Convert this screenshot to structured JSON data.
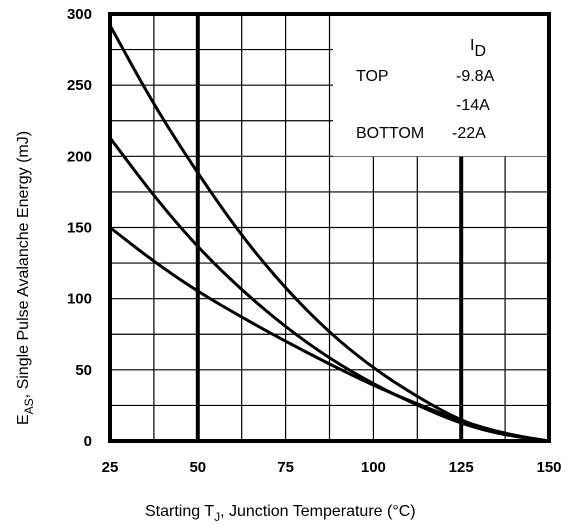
{
  "chart_data": {
    "type": "line",
    "title": "",
    "xlabel": {
      "prefix": "Starting T",
      "subscript": "J",
      "suffix": ", Junction Temperature (°C)"
    },
    "ylabel": {
      "prefix": "E",
      "subscript": "AS",
      "suffix": ", Single Pulse Avalanche Energy (mJ)"
    },
    "xlim": [
      25,
      150
    ],
    "ylim": [
      0,
      300
    ],
    "x_ticks": [
      "25",
      "50",
      "75",
      "100",
      "125",
      "150"
    ],
    "y_ticks": [
      "300",
      "250",
      "200",
      "150",
      "100",
      "50",
      "0"
    ],
    "grid": true,
    "legend": {
      "title": {
        "prefix": "I",
        "subscript": "D"
      },
      "placement": "top-right",
      "rows": [
        {
          "label": "TOP",
          "value": "-9.8A"
        },
        {
          "label": "",
          "value": "-14A"
        },
        {
          "label": "BOTTOM",
          "value": "-22A"
        }
      ]
    },
    "series": [
      {
        "name": "-9.8A",
        "color": "#000000",
        "x": [
          25,
          37.5,
          50,
          62.5,
          75,
          87.5,
          100,
          112.5,
          125,
          137.5,
          150
        ],
        "y": [
          292,
          236,
          188,
          144,
          107,
          76,
          51,
          31,
          14,
          4,
          0
        ]
      },
      {
        "name": "-14A",
        "color": "#000000",
        "x": [
          25,
          37.5,
          50,
          62.5,
          75,
          87.5,
          100,
          112.5,
          125,
          137.5,
          150
        ],
        "y": [
          213,
          172,
          136,
          106,
          80,
          58,
          40,
          25,
          12,
          4,
          0
        ]
      },
      {
        "name": "-22A",
        "color": "#000000",
        "x": [
          25,
          37.5,
          50,
          62.5,
          75,
          87.5,
          100,
          112.5,
          125,
          137.5,
          150
        ],
        "y": [
          150,
          126,
          105,
          87,
          70,
          54,
          39,
          26,
          14,
          5,
          0
        ]
      }
    ]
  }
}
